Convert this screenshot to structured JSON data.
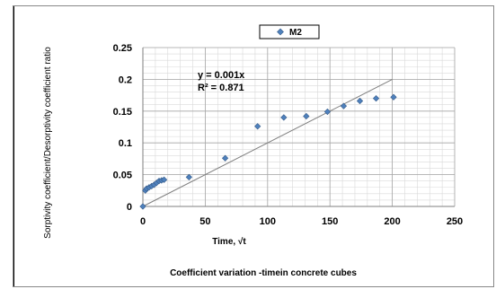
{
  "chart_data": {
    "type": "scatter",
    "title": "Coefficient variation -timein concrete cubes",
    "xlabel": "Time, √t",
    "ylabel": "Sorptivity coefficient/Desorptivity coefficient ratio",
    "xlim": [
      0,
      250
    ],
    "ylim": [
      0,
      0.25
    ],
    "xticks": [
      "0",
      "50",
      "100",
      "150",
      "200",
      "250"
    ],
    "yticks": [
      "0",
      "0.05",
      "0.1",
      "0.15",
      "0.2",
      "0.25"
    ],
    "grid": true,
    "legend_position": "top-center",
    "series": [
      {
        "name": "M2",
        "marker": "diamond",
        "color": "#4F81BD",
        "points": [
          {
            "x": 0,
            "y": 0.0
          },
          {
            "x": 2,
            "y": 0.025
          },
          {
            "x": 3,
            "y": 0.028
          },
          {
            "x": 5,
            "y": 0.03
          },
          {
            "x": 7,
            "y": 0.032
          },
          {
            "x": 9,
            "y": 0.034
          },
          {
            "x": 11,
            "y": 0.037
          },
          {
            "x": 13,
            "y": 0.04
          },
          {
            "x": 15,
            "y": 0.041
          },
          {
            "x": 17,
            "y": 0.042
          },
          {
            "x": 37,
            "y": 0.046
          },
          {
            "x": 66,
            "y": 0.076
          },
          {
            "x": 92,
            "y": 0.126
          },
          {
            "x": 113,
            "y": 0.14
          },
          {
            "x": 131,
            "y": 0.142
          },
          {
            "x": 148,
            "y": 0.149
          },
          {
            "x": 161,
            "y": 0.158
          },
          {
            "x": 174,
            "y": 0.166
          },
          {
            "x": 187,
            "y": 0.17
          },
          {
            "x": 201,
            "y": 0.172
          }
        ]
      }
    ],
    "trendline": {
      "equation": "y = 0.001x",
      "r_squared": "R² = 0.871",
      "x": [
        0,
        200
      ],
      "y": [
        0,
        0.2
      ]
    }
  }
}
